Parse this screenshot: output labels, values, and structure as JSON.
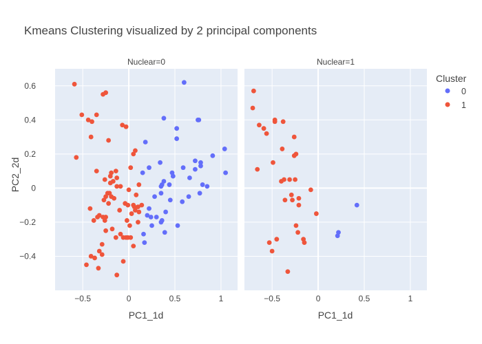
{
  "chart_data": {
    "type": "scatter",
    "title": "Kmeans Clustering visualized by 2 principal components",
    "xlabel": "PC1_1d",
    "ylabel": "PC2_2d",
    "xlim": [
      -0.8,
      1.18
    ],
    "ylim": [
      -0.6,
      0.7
    ],
    "x_ticks": [
      -0.5,
      0,
      0.5,
      1
    ],
    "x_tick_labels": [
      "−0.5",
      "0",
      "0.5",
      "1"
    ],
    "y_ticks": [
      -0.4,
      -0.2,
      0,
      0.2,
      0.4,
      0.6
    ],
    "y_tick_labels": [
      "−0.4",
      "−0.2",
      "0",
      "0.2",
      "0.4",
      "0.6"
    ],
    "grid": true,
    "legend_position": "top-right",
    "legend_title": "Cluster",
    "series": [
      {
        "name": "0",
        "color": "#636efa"
      },
      {
        "name": "1",
        "color": "#ef553b"
      }
    ],
    "facets": [
      {
        "label": "Nuclear=0",
        "points": {
          "0": [
            [
              0.6,
              0.62
            ],
            [
              0.38,
              0.41
            ],
            [
              0.75,
              0.4
            ],
            [
              0.76,
              0.4
            ],
            [
              0.52,
              0.35
            ],
            [
              0.52,
              0.29
            ],
            [
              0.18,
              0.27
            ],
            [
              1.04,
              0.23
            ],
            [
              0.91,
              0.19
            ],
            [
              0.72,
              0.16
            ],
            [
              0.78,
              0.15
            ],
            [
              0.78,
              0.13
            ],
            [
              0.34,
              0.15
            ],
            [
              0.22,
              0.12
            ],
            [
              0.59,
              0.12
            ],
            [
              0.72,
              0.11
            ],
            [
              0.47,
              0.09
            ],
            [
              1.05,
              0.09
            ],
            [
              0.15,
              0.09
            ],
            [
              0.48,
              0.07
            ],
            [
              0.66,
              0.06
            ],
            [
              0.38,
              0.04
            ],
            [
              0.36,
              0.02
            ],
            [
              0.44,
              0.02
            ],
            [
              0.35,
              0.01
            ],
            [
              0.8,
              0.02
            ],
            [
              0.85,
              0.01
            ],
            [
              0.77,
              -0.03
            ],
            [
              0.35,
              -0.03
            ],
            [
              0.65,
              -0.05
            ],
            [
              0.28,
              -0.05
            ],
            [
              0.45,
              -0.07
            ],
            [
              0.58,
              -0.08
            ],
            [
              0.4,
              -0.14
            ],
            [
              0.22,
              -0.12
            ],
            [
              0.2,
              -0.16
            ],
            [
              0.24,
              -0.17
            ],
            [
              0.3,
              -0.17
            ],
            [
              0.36,
              -0.19
            ],
            [
              0.35,
              -0.2
            ],
            [
              0.25,
              -0.22
            ],
            [
              0.53,
              -0.22
            ],
            [
              0.39,
              -0.26
            ],
            [
              0.16,
              -0.27
            ],
            [
              0.17,
              -0.32
            ]
          ],
          "1": [
            [
              -0.59,
              0.61
            ],
            [
              -0.28,
              0.55
            ],
            [
              -0.25,
              0.56
            ],
            [
              -0.51,
              0.43
            ],
            [
              -0.35,
              0.43
            ],
            [
              -0.44,
              0.4
            ],
            [
              -0.4,
              0.39
            ],
            [
              -0.07,
              0.37
            ],
            [
              -0.03,
              0.36
            ],
            [
              -0.41,
              0.3
            ],
            [
              -0.22,
              0.28
            ],
            [
              0.07,
              0.22
            ],
            [
              0.05,
              0.2
            ],
            [
              -0.57,
              0.18
            ],
            [
              0.02,
              0.12
            ],
            [
              -0.14,
              0.1
            ],
            [
              -0.35,
              0.1
            ],
            [
              -0.19,
              0.09
            ],
            [
              -0.2,
              0.07
            ],
            [
              -0.26,
              0.05
            ],
            [
              -0.13,
              0.06
            ],
            [
              -0.17,
              0.04
            ],
            [
              -0.2,
              0.03
            ],
            [
              -0.13,
              0.01
            ],
            [
              -0.09,
              0.01
            ],
            [
              0.11,
              0.02
            ],
            [
              0.0,
              -0.01
            ],
            [
              -0.23,
              -0.03
            ],
            [
              -0.21,
              -0.03
            ],
            [
              -0.25,
              -0.05
            ],
            [
              0.08,
              -0.04
            ],
            [
              -0.19,
              -0.05
            ],
            [
              -0.27,
              -0.07
            ],
            [
              -0.16,
              -0.06
            ],
            [
              -0.22,
              -0.09
            ],
            [
              -0.04,
              -0.09
            ],
            [
              -0.01,
              -0.1
            ],
            [
              0.05,
              -0.1
            ],
            [
              0.1,
              -0.11
            ],
            [
              0.06,
              -0.11
            ],
            [
              0.14,
              -0.1
            ],
            [
              -0.42,
              -0.12
            ],
            [
              0.11,
              -0.14
            ],
            [
              -0.1,
              -0.13
            ],
            [
              0.07,
              -0.13
            ],
            [
              0.03,
              -0.15
            ],
            [
              -0.32,
              -0.16
            ],
            [
              -0.34,
              -0.17
            ],
            [
              -0.28,
              -0.17
            ],
            [
              -0.25,
              -0.17
            ],
            [
              -0.26,
              -0.19
            ],
            [
              -0.38,
              -0.19
            ],
            [
              -0.02,
              -0.19
            ],
            [
              0.1,
              -0.2
            ],
            [
              0.01,
              -0.22
            ],
            [
              -0.18,
              -0.24
            ],
            [
              -0.25,
              -0.25
            ],
            [
              -0.09,
              -0.27
            ],
            [
              -0.06,
              -0.29
            ],
            [
              -0.03,
              -0.29
            ],
            [
              -0.01,
              -0.29
            ],
            [
              0.02,
              -0.29
            ],
            [
              -0.14,
              -0.29
            ],
            [
              -0.29,
              -0.33
            ],
            [
              0.05,
              -0.34
            ],
            [
              -0.32,
              -0.37
            ],
            [
              -0.41,
              -0.4
            ],
            [
              -0.29,
              -0.39
            ],
            [
              -0.37,
              -0.41
            ],
            [
              -0.06,
              -0.43
            ],
            [
              -0.46,
              -0.45
            ],
            [
              -0.33,
              -0.47
            ],
            [
              -0.13,
              -0.51
            ]
          ]
        }
      },
      {
        "label": "Nuclear=1",
        "points": {
          "0": [
            [
              0.42,
              -0.1
            ],
            [
              0.22,
              -0.26
            ],
            [
              0.21,
              -0.28
            ]
          ],
          "1": [
            [
              -0.7,
              0.57
            ],
            [
              -0.71,
              0.47
            ],
            [
              -0.47,
              0.4
            ],
            [
              -0.47,
              0.39
            ],
            [
              -0.38,
              0.39
            ],
            [
              -0.64,
              0.37
            ],
            [
              -0.59,
              0.35
            ],
            [
              -0.56,
              0.32
            ],
            [
              -0.26,
              0.3
            ],
            [
              -0.39,
              0.23
            ],
            [
              -0.24,
              0.2
            ],
            [
              -0.26,
              0.19
            ],
            [
              -0.49,
              0.15
            ],
            [
              -0.66,
              0.11
            ],
            [
              -0.31,
              0.05
            ],
            [
              -0.25,
              0.05
            ],
            [
              -0.4,
              0.04
            ],
            [
              -0.37,
              0.05
            ],
            [
              -0.08,
              -0.01
            ],
            [
              -0.29,
              -0.04
            ],
            [
              -0.21,
              -0.06
            ],
            [
              -0.36,
              -0.07
            ],
            [
              -0.28,
              -0.07
            ],
            [
              -0.21,
              -0.1
            ],
            [
              -0.02,
              -0.15
            ],
            [
              -0.24,
              -0.22
            ],
            [
              -0.22,
              -0.26
            ],
            [
              -0.16,
              -0.3
            ],
            [
              -0.15,
              -0.32
            ],
            [
              -0.45,
              -0.3
            ],
            [
              -0.53,
              -0.32
            ],
            [
              -0.5,
              -0.37
            ],
            [
              -0.33,
              -0.49
            ]
          ]
        }
      }
    ]
  }
}
